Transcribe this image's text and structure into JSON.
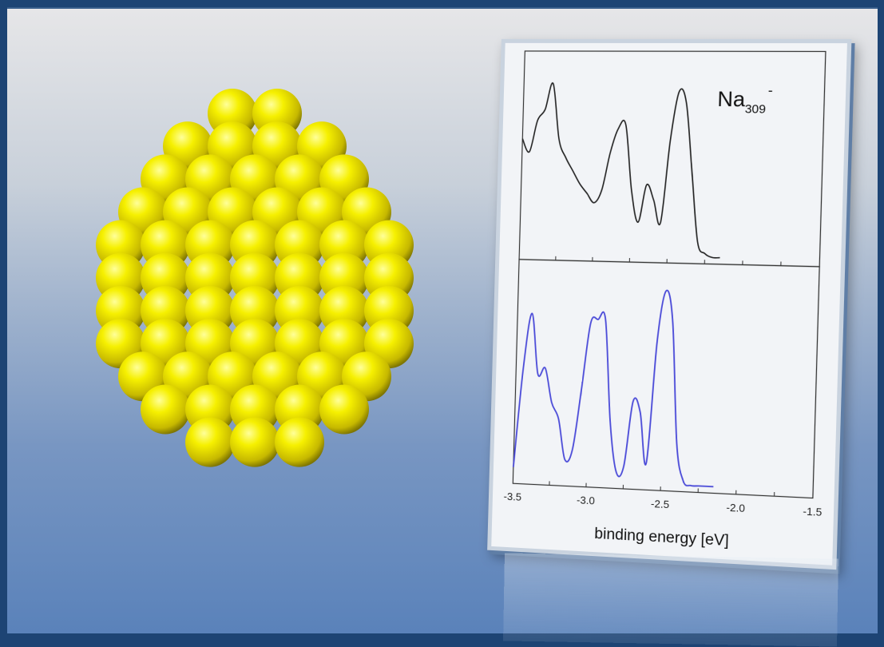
{
  "figure": {
    "species": {
      "base": "Na",
      "subscript": "309",
      "superscript": "-"
    }
  },
  "chart_data": {
    "type": "line",
    "xlabel": "binding energy [eV]",
    "xlim": [
      -3.5,
      -1.5
    ],
    "x_ticks": [
      "-3.5",
      "-3.0",
      "-2.5",
      "-2.0",
      "-1.5"
    ],
    "grid": false,
    "panels": [
      {
        "position": "top",
        "series_color": "#222222",
        "x": [
          -3.5,
          -3.45,
          -3.4,
          -3.35,
          -3.3,
          -3.25,
          -3.2,
          -3.15,
          -3.1,
          -3.05,
          -3.0,
          -2.95,
          -2.9,
          -2.85,
          -2.8,
          -2.75,
          -2.7,
          -2.65,
          -2.6,
          -2.55,
          -2.5,
          -2.45,
          -2.4,
          -2.35,
          -2.3,
          -2.25,
          -2.2,
          -2.15
        ],
        "y": [
          0.62,
          0.55,
          0.72,
          0.78,
          0.92,
          0.62,
          0.52,
          0.45,
          0.38,
          0.33,
          0.28,
          0.35,
          0.55,
          0.68,
          0.7,
          0.35,
          0.18,
          0.38,
          0.3,
          0.18,
          0.62,
          0.88,
          0.82,
          0.45,
          0.08,
          0.02,
          0.0,
          0.0
        ]
      },
      {
        "position": "bottom",
        "series_color": "#4a4ad8",
        "x": [
          -3.5,
          -3.45,
          -3.4,
          -3.35,
          -3.3,
          -3.25,
          -3.2,
          -3.15,
          -3.1,
          -3.05,
          -3.0,
          -2.95,
          -2.9,
          -2.85,
          -2.8,
          -2.75,
          -2.7,
          -2.65,
          -2.6,
          -2.55,
          -2.5,
          -2.45,
          -2.4,
          -2.35,
          -2.3,
          -2.25,
          -2.2,
          -2.15
        ],
        "y": [
          0.05,
          0.55,
          0.82,
          0.52,
          0.55,
          0.38,
          0.3,
          0.1,
          0.15,
          0.45,
          0.78,
          0.8,
          0.8,
          0.3,
          0.05,
          0.08,
          0.4,
          0.35,
          0.1,
          0.7,
          0.95,
          0.8,
          0.2,
          0.02,
          0.0,
          0.0,
          0.0,
          0.0
        ]
      }
    ]
  }
}
